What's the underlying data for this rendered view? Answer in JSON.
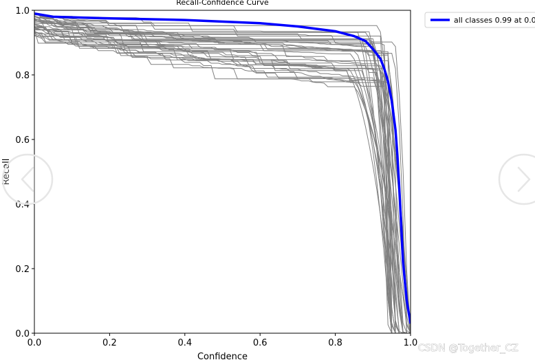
{
  "chart_data": {
    "type": "line",
    "title": "Recall-Confidence Curve",
    "xlabel": "Confidence",
    "ylabel": "Recall",
    "xlim": [
      0,
      1
    ],
    "ylim": [
      0,
      1
    ],
    "x_ticks": [
      "0.0",
      "0.2",
      "0.4",
      "0.6",
      "0.8",
      "1.0"
    ],
    "y_ticks": [
      "0.0",
      "0.2",
      "0.4",
      "0.6",
      "0.8",
      "1.0"
    ],
    "legend_placement": "outside top-right",
    "grid": false,
    "class_line_color": "#808080",
    "class_line_count": 40,
    "series": [
      {
        "name": "all classes 0.99 at 0.0",
        "color": "#0000ff",
        "x": [
          0.0,
          0.05,
          0.2,
          0.4,
          0.6,
          0.7,
          0.8,
          0.85,
          0.88,
          0.9,
          0.92,
          0.93,
          0.94,
          0.95,
          0.96,
          0.965,
          0.97,
          0.975,
          0.98,
          0.99,
          1.0
        ],
        "y": [
          0.99,
          0.98,
          0.975,
          0.97,
          0.96,
          0.95,
          0.935,
          0.92,
          0.905,
          0.88,
          0.85,
          0.82,
          0.78,
          0.72,
          0.63,
          0.55,
          0.45,
          0.34,
          0.22,
          0.1,
          0.03
        ]
      }
    ]
  },
  "watermark": {
    "text": "CSDN @Together_CZ",
    "color": "#ffffff"
  },
  "overlay": {
    "prev_icon": "chevron-left-icon",
    "next_icon": "chevron-right-icon"
  }
}
